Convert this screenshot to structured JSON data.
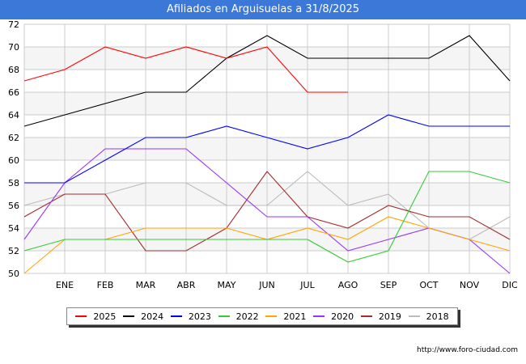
{
  "title": "Afiliados en Arguisuelas a 31/8/2025",
  "source": "http://www.foro-ciudad.com",
  "colors": {
    "title_bg": "#3b78d8",
    "grid": "#cccccc",
    "band": "#f5f5f5"
  },
  "chart_data": {
    "type": "line",
    "title": "Afiliados en Arguisuelas a 31/8/2025",
    "xlabel": "",
    "ylabel": "",
    "categories": [
      "",
      "ENE",
      "FEB",
      "MAR",
      "ABR",
      "MAY",
      "JUN",
      "JUL",
      "AGO",
      "SEP",
      "OCT",
      "NOV",
      "DIC"
    ],
    "ylim": [
      50,
      72
    ],
    "yticks": [
      50,
      52,
      54,
      56,
      58,
      60,
      62,
      64,
      66,
      68,
      70,
      72
    ],
    "grid": true,
    "legend_position": "bottom",
    "series": [
      {
        "name": "2018",
        "color": "#bbbbbb",
        "values": [
          56,
          57,
          57,
          58,
          58,
          56,
          56,
          59,
          56,
          57,
          54,
          53,
          55
        ]
      },
      {
        "name": "2019",
        "color": "#a52a2a",
        "values": [
          55,
          57,
          57,
          52,
          52,
          54,
          59,
          55,
          54,
          56,
          55,
          55,
          53
        ]
      },
      {
        "name": "2020",
        "color": "#9933ff",
        "values": [
          53,
          58,
          61,
          61,
          61,
          58,
          55,
          55,
          52,
          53,
          54,
          53,
          50
        ]
      },
      {
        "name": "2021",
        "color": "#ffa500",
        "values": [
          50,
          53,
          53,
          54,
          54,
          54,
          53,
          54,
          53,
          55,
          54,
          53,
          52
        ]
      },
      {
        "name": "2022",
        "color": "#33cc33",
        "values": [
          52,
          53,
          53,
          53,
          53,
          53,
          53,
          53,
          51,
          52,
          59,
          59,
          58
        ]
      },
      {
        "name": "2023",
        "color": "#0000ff",
        "values": [
          58,
          58,
          60,
          62,
          62,
          63,
          62,
          61,
          62,
          64,
          63,
          63,
          63
        ]
      },
      {
        "name": "2024",
        "color": "#000000",
        "values": [
          63,
          64,
          65,
          66,
          66,
          69,
          71,
          69,
          69,
          69,
          69,
          71,
          67
        ]
      },
      {
        "name": "2025",
        "color": "#ff0000",
        "values": [
          67,
          68,
          70,
          69,
          70,
          69,
          70,
          66,
          66,
          null,
          null,
          null,
          null
        ]
      }
    ],
    "legend_order": [
      "2025",
      "2024",
      "2023",
      "2022",
      "2021",
      "2020",
      "2019",
      "2018"
    ]
  }
}
